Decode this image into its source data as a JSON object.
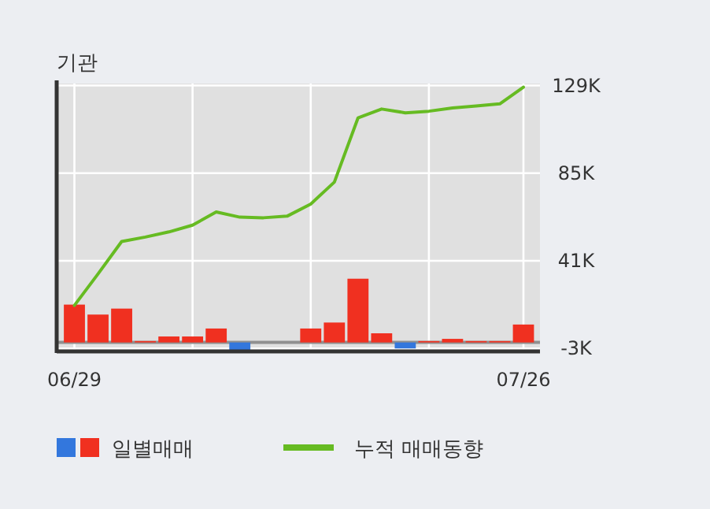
{
  "chart_data": {
    "type": "bar",
    "title": "기관",
    "categories": [
      "06/29",
      null,
      null,
      null,
      null,
      null,
      null,
      null,
      null,
      null,
      null,
      null,
      null,
      null,
      null,
      null,
      null,
      null,
      null,
      "07/26"
    ],
    "series": [
      {
        "name": "일별매매",
        "colors": [
          "#f03020",
          "#f03020",
          "#f03020",
          "#f03020",
          "#f03020",
          "#f03020",
          "#f03020",
          "#3377dd",
          null,
          null,
          "#f03020",
          "#f03020",
          "#f03020",
          "#f03020",
          "#3377dd",
          "#f03020",
          "#f03020",
          "#f03020",
          "#f03020",
          "#f03020"
        ],
        "values": [
          19,
          14,
          17,
          0.7,
          3,
          3,
          7,
          -4,
          0,
          0,
          7,
          10,
          32,
          4.6,
          -3,
          0.7,
          1.8,
          0.7,
          0.7,
          9
        ]
      },
      {
        "name": "누적 매매동향",
        "type": "line",
        "color": "#66bb22",
        "values": [
          18.6,
          34.4,
          50.7,
          52.9,
          55.5,
          58.9,
          65.5,
          62.9,
          62.6,
          63.4,
          69.5,
          80.5,
          112.7,
          117.2,
          115.3,
          116.1,
          117.7,
          118.7,
          119.8,
          128.2
        ]
      }
    ],
    "ylim": [
      -4.5,
      130
    ],
    "yticks": [
      {
        "value": 129,
        "label": "129K"
      },
      {
        "value": 85,
        "label": "85K"
      },
      {
        "value": 41,
        "label": "41K"
      },
      {
        "value": -3,
        "label": "-3K"
      }
    ],
    "grid": true,
    "legend": "bottom"
  }
}
